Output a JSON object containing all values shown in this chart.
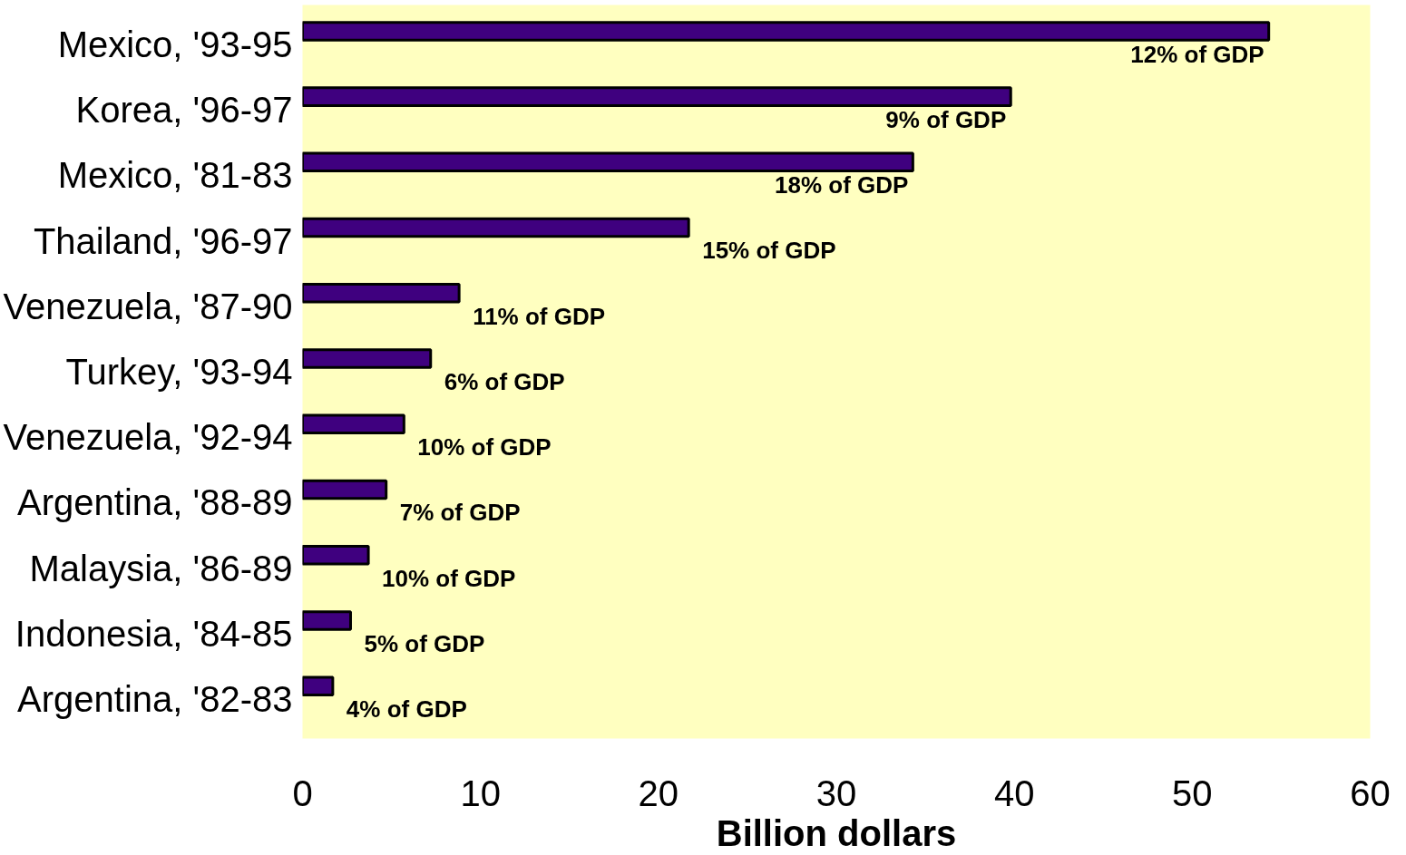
{
  "chart_data": {
    "type": "bar",
    "orientation": "horizontal",
    "xlabel": "Billion dollars",
    "categories": [
      "Mexico, '93-95",
      "Korea, '96-97",
      "Mexico, '81-83",
      "Thailand, '96-97",
      "Venezuela, '87-90",
      "Turkey, '93-94",
      "Venezuela, '92-94",
      "Argentina, '88-89",
      "Malaysia, '86-89",
      "Indonesia, '84-85",
      "Argentina, '82-83"
    ],
    "values": [
      54.3,
      39.8,
      34.3,
      21.7,
      8.8,
      7.2,
      5.7,
      4.7,
      3.7,
      2.7,
      1.7
    ],
    "annotations": [
      {
        "text": "12% of GDP",
        "x": 54.3,
        "y": "Mexico, '93-95"
      },
      {
        "text": "9% of GDP",
        "x": 39.8,
        "y": "Korea, '96-97"
      },
      {
        "text": "18% of GDP",
        "x": 34.3,
        "y": "Mexico, '81-83"
      },
      {
        "text": "15% of GDP",
        "x": 21.7,
        "y": "Thailand, '96-97"
      },
      {
        "text": "11% of GDP",
        "x": 8.8,
        "y": "Venezuela, '87-90"
      },
      {
        "text": "6% of GDP",
        "x": 7.2,
        "y": "Turkey, '93-94"
      },
      {
        "text": "10% of GDP",
        "x": 5.7,
        "y": "Venezuela, '92-94"
      },
      {
        "text": "7% of GDP",
        "x": 4.7,
        "y": "Argentina, '88-89"
      },
      {
        "text": "10% of GDP",
        "x": 3.7,
        "y": "Malaysia, '86-89"
      },
      {
        "text": "5% of GDP",
        "x": 2.7,
        "y": "Indonesia, '84-85"
      },
      {
        "text": "4% of GDP",
        "x": 1.7,
        "y": "Argentina, '82-83"
      }
    ],
    "color": "#3f007f",
    "xlim": [
      0,
      60
    ],
    "xticks": [
      0,
      10,
      20,
      30,
      40,
      50,
      60
    ],
    "grid": false
  }
}
